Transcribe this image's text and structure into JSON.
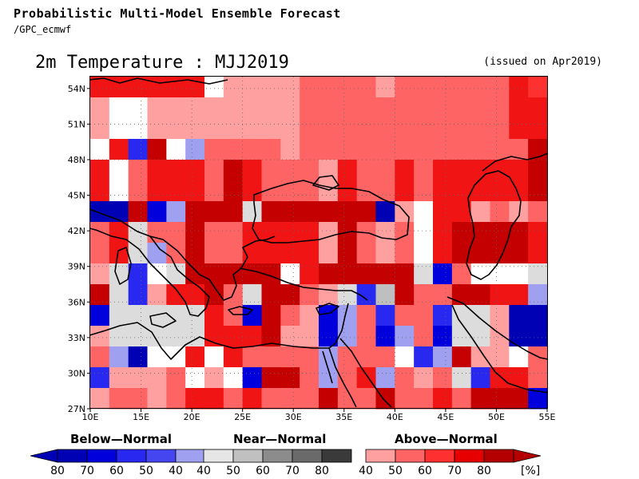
{
  "header": {
    "title": "Probabilistic Multi-Model Ensemble Forecast",
    "subtitle": "/GPC_ecmwf",
    "main_title": "2m Temperature : MJJ2019",
    "issued": "(issued on Apr2019)"
  },
  "map": {
    "lon_range": [
      10,
      55
    ],
    "lat_range": [
      27,
      55
    ],
    "x_ticks": [
      "10E",
      "15E",
      "20E",
      "25E",
      "30E",
      "35E",
      "40E",
      "45E",
      "50E",
      "55E"
    ],
    "y_ticks": [
      "27N",
      "30N",
      "33N",
      "36N",
      "39N",
      "42N",
      "45N",
      "48N",
      "51N",
      "54N"
    ]
  },
  "legend": {
    "below_label": "Below—Normal",
    "near_label": "Near—Normal",
    "above_label": "Above—Normal",
    "unit": "[%]",
    "below_ticks": [
      "80",
      "70",
      "60",
      "50",
      "40"
    ],
    "near_ticks": [
      "40",
      "50",
      "60",
      "70",
      "80"
    ],
    "above_ticks": [
      "40",
      "50",
      "60",
      "70",
      "80"
    ],
    "below_colors": [
      "#0000b4",
      "#0000dc",
      "#2828f0",
      "#4646f0",
      "#a0a0f0"
    ],
    "near_colors": [
      "#e6e6e6",
      "#c0c0c0",
      "#8c8c8c",
      "#6a6a6a",
      "#3a3a3a"
    ],
    "above_colors": [
      "#fea0a0",
      "#fe6464",
      "#fe3030",
      "#e60000",
      "#b40000"
    ]
  },
  "colors": {
    "W": "#ffffff",
    "B1": "#a0a0f0",
    "B2": "#4646f0",
    "B3": "#2828f0",
    "B4": "#0000dc",
    "B5": "#0000b4",
    "N1": "#dcdcdc",
    "N2": "#bfbfbf",
    "A1": "#fea0a0",
    "A2": "#fe6464",
    "A3": "#fe3030",
    "A4": "#f01414",
    "A5": "#c40000"
  },
  "grid_cells": [
    [
      "A4",
      "A4",
      "A4",
      "A4",
      "A4",
      "A4",
      "W",
      "A1",
      "A1",
      "A1",
      "A1",
      "A2",
      "A2",
      "A2",
      "A2",
      "A1",
      "A2",
      "A2",
      "A2",
      "A2",
      "A2",
      "A2",
      "A4",
      "A3"
    ],
    [
      "A1",
      "W",
      "W",
      "A1",
      "A1",
      "A1",
      "A1",
      "A1",
      "A1",
      "A1",
      "A1",
      "A2",
      "A2",
      "A2",
      "A2",
      "A2",
      "A2",
      "A2",
      "A2",
      "A2",
      "A2",
      "A2",
      "A4",
      "A4"
    ],
    [
      "A1",
      "W",
      "W",
      "A1",
      "A1",
      "A1",
      "A1",
      "A1",
      "A1",
      "A1",
      "A1",
      "A2",
      "A2",
      "A2",
      "A2",
      "A2",
      "A2",
      "A2",
      "A2",
      "A2",
      "A2",
      "A2",
      "A4",
      "A4"
    ],
    [
      "W",
      "A4",
      "B3",
      "A5",
      "W",
      "B1",
      "A2",
      "A2",
      "A2",
      "A2",
      "A1",
      "A2",
      "A2",
      "A2",
      "A2",
      "A2",
      "A2",
      "A2",
      "A2",
      "A2",
      "A2",
      "A2",
      "A2",
      "A5"
    ],
    [
      "A4",
      "W",
      "A2",
      "A4",
      "A4",
      "A4",
      "A2",
      "A5",
      "A4",
      "A2",
      "A2",
      "A2",
      "A1",
      "A4",
      "A2",
      "A2",
      "A4",
      "A2",
      "A4",
      "A4",
      "A4",
      "A4",
      "A4",
      "A5"
    ],
    [
      "A4",
      "W",
      "A2",
      "A4",
      "A4",
      "A4",
      "A2",
      "A5",
      "A4",
      "A2",
      "A2",
      "A2",
      "A1",
      "A4",
      "A2",
      "A2",
      "A4",
      "A2",
      "A4",
      "A4",
      "A4",
      "A4",
      "A4",
      "A5"
    ],
    [
      "B5",
      "B5",
      "A5",
      "B4",
      "B1",
      "A5",
      "A5",
      "A5",
      "N1",
      "A5",
      "A5",
      "A5",
      "A5",
      "A5",
      "A5",
      "B5",
      "A1",
      "W",
      "A4",
      "A4",
      "A1",
      "A2",
      "A1",
      "A2"
    ],
    [
      "A2",
      "A4",
      "N1",
      "A2",
      "A2",
      "A5",
      "A2",
      "A2",
      "A4",
      "A4",
      "A4",
      "A4",
      "A1",
      "A5",
      "A2",
      "A1",
      "A2",
      "W",
      "A4",
      "A5",
      "A5",
      "A5",
      "A5",
      "A4"
    ],
    [
      "A2",
      "A4",
      "N1",
      "B1",
      "A2",
      "A5",
      "A2",
      "A2",
      "A4",
      "A4",
      "A4",
      "A4",
      "A1",
      "A5",
      "A2",
      "A1",
      "A2",
      "W",
      "A4",
      "A5",
      "A5",
      "A5",
      "A5",
      "A4"
    ],
    [
      "A1",
      "N1",
      "B3",
      "W",
      "N1",
      "A5",
      "A5",
      "A5",
      "A5",
      "A5",
      "W",
      "A4",
      "A5",
      "A5",
      "A5",
      "A5",
      "A5",
      "N1",
      "B4",
      "A2",
      "W",
      "W",
      "W",
      "N1"
    ],
    [
      "A5",
      "N1",
      "B3",
      "A1",
      "A4",
      "A4",
      "A5",
      "A2",
      "N1",
      "A5",
      "A5",
      "A2",
      "A1",
      "N1",
      "B3",
      "N2",
      "A5",
      "A2",
      "A2",
      "A5",
      "A5",
      "A4",
      "A4",
      "B1"
    ],
    [
      "B4",
      "N1",
      "N1",
      "N1",
      "N1",
      "N1",
      "A4",
      "A2",
      "B4",
      "A5",
      "A2",
      "A1",
      "B4",
      "B1",
      "A2",
      "B3",
      "A2",
      "A2",
      "B3",
      "N1",
      "N1",
      "A1",
      "B5",
      "B5"
    ],
    [
      "A1",
      "N1",
      "N1",
      "N1",
      "N1",
      "N1",
      "A4",
      "A4",
      "A4",
      "A5",
      "A1",
      "A1",
      "B4",
      "B1",
      "A2",
      "B4",
      "B1",
      "A2",
      "B4",
      "N1",
      "N1",
      "A1",
      "B5",
      "B5"
    ],
    [
      "A2",
      "B1",
      "B5",
      "W",
      "W",
      "A4",
      "W",
      "A4",
      "A2",
      "A2",
      "A2",
      "A2",
      "B1",
      "A2",
      "A2",
      "A2",
      "W",
      "B3",
      "B1",
      "A5",
      "A1",
      "A1",
      "W",
      "A2"
    ],
    [
      "B3",
      "A1",
      "A1",
      "A1",
      "A2",
      "W",
      "A1",
      "W",
      "B4",
      "A5",
      "A5",
      "A2",
      "B1",
      "A2",
      "A4",
      "B1",
      "A2",
      "A1",
      "A2",
      "N1",
      "B3",
      "A4",
      "A4",
      "A2"
    ],
    [
      "A1",
      "A2",
      "A2",
      "A1",
      "A2",
      "A4",
      "A4",
      "A2",
      "A4",
      "A2",
      "A2",
      "A2",
      "A5",
      "A2",
      "A2",
      "A5",
      "A2",
      "A2",
      "A4",
      "A2",
      "A5",
      "A5",
      "A5",
      "B4"
    ]
  ]
}
